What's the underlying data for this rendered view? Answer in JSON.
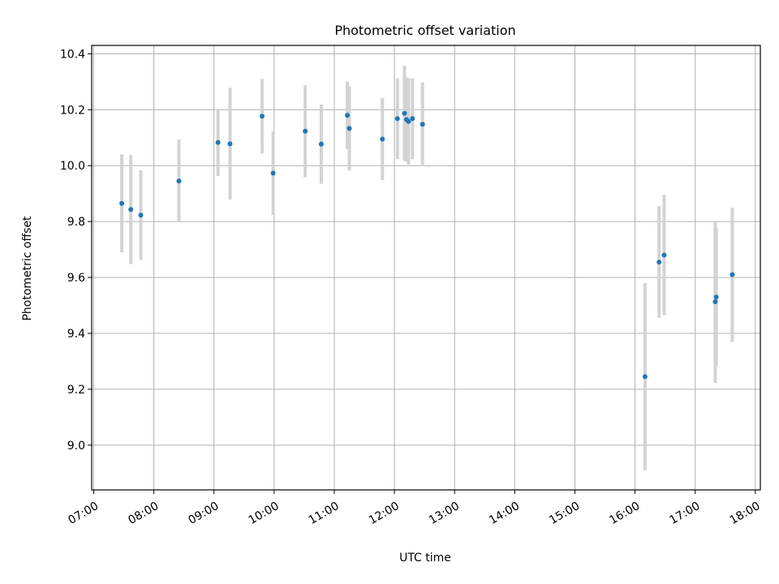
{
  "chart_data": {
    "type": "scatter",
    "title": "Photometric offset variation",
    "xlabel": "UTC time",
    "ylabel": "Photometric offset",
    "x_unit": "UTC time (HH:MM)",
    "xlim": [
      "06:58",
      "18:05"
    ],
    "ylim": [
      8.84,
      10.43
    ],
    "x_ticks": [
      "07:00",
      "08:00",
      "09:00",
      "10:00",
      "11:00",
      "12:00",
      "13:00",
      "14:00",
      "15:00",
      "16:00",
      "17:00",
      "18:00"
    ],
    "y_ticks": [
      9.0,
      9.2,
      9.4,
      9.6,
      9.8,
      10.0,
      10.2,
      10.4
    ],
    "y_tick_labels": [
      "9.0",
      "9.2",
      "9.4",
      "9.6",
      "9.8",
      "10.0",
      "10.2",
      "10.4"
    ],
    "grid": true,
    "legend": "none",
    "colors": {
      "point": "#1f77b4",
      "errorbar": "#d3d3d3",
      "grid": "#b0b0b0"
    },
    "points": [
      {
        "x": "07:28",
        "y": 9.865,
        "err": 0.175
      },
      {
        "x": "07:37",
        "y": 9.843,
        "err": 0.195
      },
      {
        "x": "07:47",
        "y": 9.823,
        "err": 0.16
      },
      {
        "x": "08:25",
        "y": 9.945,
        "err": 0.148
      },
      {
        "x": "09:04",
        "y": 10.083,
        "err": 0.12
      },
      {
        "x": "09:16",
        "y": 10.078,
        "err": 0.2
      },
      {
        "x": "09:48",
        "y": 10.177,
        "err": 0.133
      },
      {
        "x": "09:59",
        "y": 9.973,
        "err": 0.15
      },
      {
        "x": "10:31",
        "y": 10.123,
        "err": 0.165
      },
      {
        "x": "10:47",
        "y": 10.077,
        "err": 0.142
      },
      {
        "x": "11:13",
        "y": 10.18,
        "err": 0.12
      },
      {
        "x": "11:15",
        "y": 10.133,
        "err": 0.15
      },
      {
        "x": "11:48",
        "y": 10.095,
        "err": 0.147
      },
      {
        "x": "12:03",
        "y": 10.168,
        "err": 0.145
      },
      {
        "x": "12:10",
        "y": 10.187,
        "err": 0.17
      },
      {
        "x": "12:12",
        "y": 10.165,
        "err": 0.15
      },
      {
        "x": "12:14",
        "y": 10.158,
        "err": 0.155
      },
      {
        "x": "12:18",
        "y": 10.168,
        "err": 0.145
      },
      {
        "x": "12:28",
        "y": 10.148,
        "err": 0.15
      },
      {
        "x": "16:10",
        "y": 9.245,
        "err": 0.335
      },
      {
        "x": "16:24",
        "y": 9.655,
        "err": 0.2
      },
      {
        "x": "16:29",
        "y": 9.68,
        "err": 0.215
      },
      {
        "x": "17:20",
        "y": 9.513,
        "err": 0.29
      },
      {
        "x": "17:21",
        "y": 9.53,
        "err": 0.245
      },
      {
        "x": "17:37",
        "y": 9.61,
        "err": 0.24
      }
    ]
  }
}
